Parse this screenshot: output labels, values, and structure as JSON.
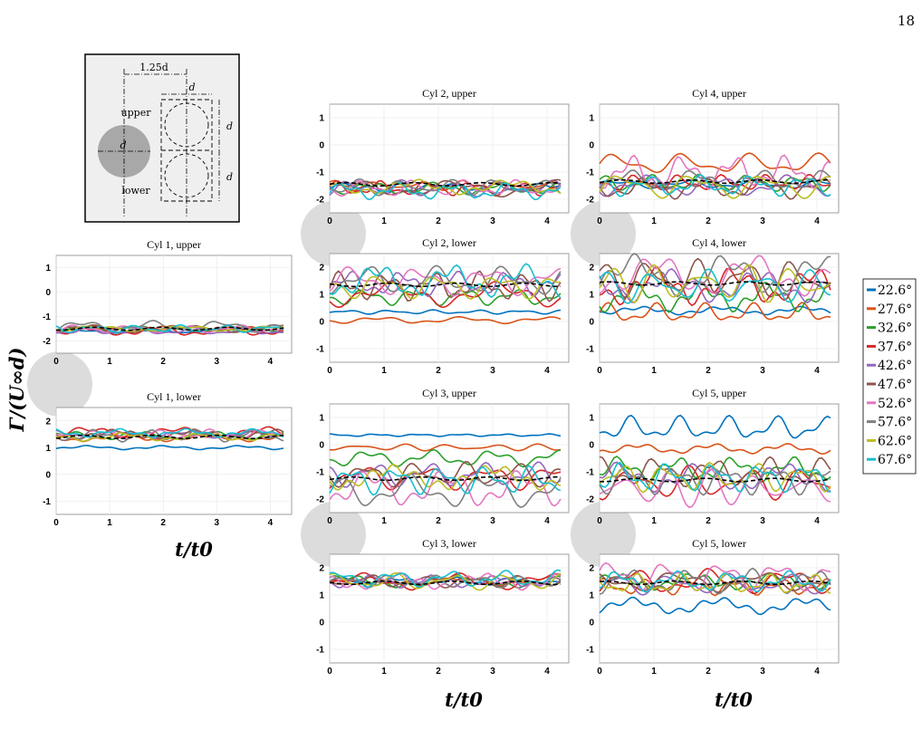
{
  "page_number": "18",
  "inset": {
    "dim_spacing": "1.25d",
    "dim_width": "d",
    "dim_height_upper": "d",
    "dim_height_lower": "d",
    "dim_diameter": "d",
    "label_upper": "upper",
    "label_lower": "lower"
  },
  "y_axis_label": "Γ/(U∞d)",
  "x_axis_label": "t/t0",
  "legend": {
    "placement": "right",
    "colors": [
      "#0072BD",
      "#D95319",
      "#2CA02C",
      "#D62728",
      "#9467BD",
      "#8C564B",
      "#E377C2",
      "#7F7F7F",
      "#BCBD22",
      "#17BECF"
    ],
    "entries": [
      "22.6°",
      "27.6°",
      "32.6°",
      "37.6°",
      "42.6°",
      "47.6°",
      "52.6°",
      "57.6°",
      "62.6°",
      "67.6°"
    ]
  },
  "chart_data": [
    {
      "type": "line",
      "title": "Cyl 1, upper",
      "xlim": [
        0,
        4.4
      ],
      "ylim": [
        -2.5,
        1.5
      ],
      "xticks": [
        "0",
        "1",
        "2",
        "3",
        "4"
      ],
      "yticks": [
        "-2",
        "-1",
        "0",
        "1"
      ],
      "grid": true,
      "series_means": [
        -1.6,
        -1.5,
        -1.5,
        -1.6,
        -1.6,
        -1.5,
        -1.5,
        -1.4,
        -1.5,
        -1.5
      ],
      "series_amplitude": [
        0.05,
        0.07,
        0.08,
        0.12,
        0.1,
        0.1,
        0.1,
        0.15,
        0.08,
        0.1
      ],
      "mean_line": -1.5
    },
    {
      "type": "line",
      "title": "Cyl 1, lower",
      "xlim": [
        0,
        4.4
      ],
      "ylim": [
        -1.5,
        2.5
      ],
      "xticks": [
        "0",
        "1",
        "2",
        "3",
        "4"
      ],
      "yticks": [
        "-1",
        "0",
        "1",
        "2"
      ],
      "grid": true,
      "series_means": [
        1.0,
        1.35,
        1.45,
        1.55,
        1.5,
        1.5,
        1.5,
        1.45,
        1.4,
        1.55
      ],
      "series_amplitude": [
        0.05,
        0.08,
        0.1,
        0.15,
        0.1,
        0.12,
        0.12,
        0.15,
        0.1,
        0.1
      ],
      "mean_line": 1.4
    },
    {
      "type": "line",
      "title": "Cyl 2, upper",
      "xlim": [
        0,
        4.4
      ],
      "ylim": [
        -2.5,
        1.5
      ],
      "xticks": [
        "0",
        "1",
        "2",
        "3",
        "4"
      ],
      "yticks": [
        "-2",
        "-1",
        "0",
        "1"
      ],
      "grid": true,
      "series_means": [
        -1.6,
        -1.5,
        -1.6,
        -1.6,
        -1.6,
        -1.6,
        -1.6,
        -1.55,
        -1.55,
        -1.7
      ],
      "series_amplitude": [
        0.12,
        0.12,
        0.15,
        0.18,
        0.2,
        0.2,
        0.2,
        0.2,
        0.18,
        0.2
      ],
      "mean_line": -1.45
    },
    {
      "type": "line",
      "title": "Cyl 2, lower",
      "xlim": [
        0,
        4.4
      ],
      "ylim": [
        -1.5,
        2.5
      ],
      "xticks": [
        "0",
        "1",
        "2",
        "3",
        "4"
      ],
      "yticks": [
        "-1",
        "0",
        "1",
        "2"
      ],
      "grid": true,
      "series_means": [
        0.35,
        0.05,
        0.9,
        1.0,
        1.4,
        1.3,
        1.5,
        1.5,
        1.3,
        1.5
      ],
      "series_amplitude": [
        0.05,
        0.08,
        0.2,
        0.3,
        0.3,
        0.35,
        0.35,
        0.35,
        0.3,
        0.4
      ],
      "mean_line": 1.35
    },
    {
      "type": "line",
      "title": "Cyl 3, upper",
      "xlim": [
        0,
        4.4
      ],
      "ylim": [
        -2.5,
        1.5
      ],
      "xticks": [
        "0",
        "1",
        "2",
        "3",
        "4"
      ],
      "yticks": [
        "-2",
        "-1",
        "0",
        "1"
      ],
      "grid": true,
      "series_means": [
        0.35,
        -0.1,
        -0.5,
        -1.2,
        -1.1,
        -1.1,
        -1.6,
        -1.7,
        -1.2,
        -1.3
      ],
      "series_amplitude": [
        0.03,
        0.08,
        0.2,
        0.3,
        0.3,
        0.3,
        0.45,
        0.4,
        0.3,
        0.35
      ],
      "mean_line": -1.25
    },
    {
      "type": "line",
      "title": "Cyl 3, lower",
      "xlim": [
        0,
        4.4
      ],
      "ylim": [
        -1.5,
        2.5
      ],
      "xticks": [
        "0",
        "1",
        "2",
        "3",
        "4"
      ],
      "yticks": [
        "-1",
        "0",
        "1",
        "2"
      ],
      "grid": true,
      "series_means": [
        1.5,
        1.5,
        1.5,
        1.5,
        1.5,
        1.5,
        1.5,
        1.5,
        1.5,
        1.6
      ],
      "series_amplitude": [
        0.1,
        0.1,
        0.15,
        0.2,
        0.15,
        0.15,
        0.2,
        0.15,
        0.2,
        0.2
      ],
      "mean_line": 1.45
    },
    {
      "type": "line",
      "title": "Cyl 4, upper",
      "xlim": [
        0,
        4.4
      ],
      "ylim": [
        -2.5,
        1.5
      ],
      "xticks": [
        "0",
        "1",
        "2",
        "3",
        "4"
      ],
      "yticks": [
        "-2",
        "-1",
        "0",
        "1"
      ],
      "grid": true,
      "series_means": [
        -1.45,
        -0.7,
        -1.4,
        -1.4,
        -1.5,
        -1.6,
        -1.0,
        -1.3,
        -1.5,
        -1.5
      ],
      "series_amplitude": [
        0.1,
        0.25,
        0.2,
        0.2,
        0.25,
        0.25,
        0.4,
        0.25,
        0.3,
        0.25
      ],
      "mean_line": -1.35
    },
    {
      "type": "line",
      "title": "Cyl 4, lower",
      "xlim": [
        0,
        4.4
      ],
      "ylim": [
        -1.5,
        2.5
      ],
      "xticks": [
        "0",
        "1",
        "2",
        "3",
        "4"
      ],
      "yticks": [
        "-1",
        "0",
        "1",
        "2"
      ],
      "grid": true,
      "series_means": [
        0.4,
        0.3,
        0.9,
        1.3,
        1.3,
        1.6,
        1.7,
        1.7,
        1.4,
        1.3
      ],
      "series_amplitude": [
        0.1,
        0.25,
        0.35,
        0.45,
        0.4,
        0.45,
        0.5,
        0.5,
        0.45,
        0.4
      ],
      "mean_line": 1.4
    },
    {
      "type": "line",
      "title": "Cyl 5, upper",
      "xlim": [
        0,
        4.4
      ],
      "ylim": [
        -2.5,
        1.5
      ],
      "xticks": [
        "0",
        "1",
        "2",
        "3",
        "4"
      ],
      "yticks": [
        "-2",
        "-1",
        "0",
        "1"
      ],
      "grid": true,
      "series_means": [
        0.6,
        -0.15,
        -0.9,
        -1.4,
        -1.2,
        -1.0,
        -1.6,
        -1.3,
        -1.2,
        -1.2
      ],
      "series_amplitude": [
        0.3,
        0.12,
        0.3,
        0.4,
        0.35,
        0.35,
        0.45,
        0.35,
        0.35,
        0.35
      ],
      "mean_line": -1.3
    },
    {
      "type": "line",
      "title": "Cyl 5, lower",
      "xlim": [
        0,
        4.4
      ],
      "ylim": [
        -1.5,
        2.5
      ],
      "xticks": [
        "0",
        "1",
        "2",
        "3",
        "4"
      ],
      "yticks": [
        "-1",
        "0",
        "1",
        "2"
      ],
      "grid": true,
      "series_means": [
        0.6,
        1.3,
        1.5,
        1.5,
        1.4,
        1.5,
        1.7,
        1.5,
        1.4,
        1.5
      ],
      "series_amplitude": [
        0.2,
        0.2,
        0.2,
        0.3,
        0.25,
        0.25,
        0.35,
        0.3,
        0.25,
        0.25
      ],
      "mean_line": 1.45
    }
  ]
}
